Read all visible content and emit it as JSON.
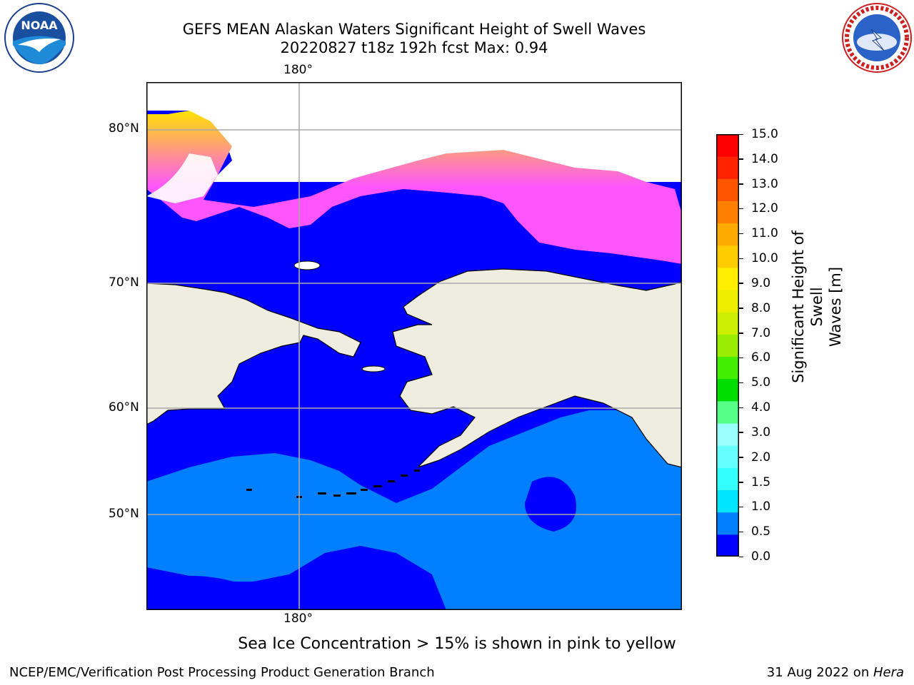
{
  "title": {
    "line1": "GEFS MEAN Alaskan Waters Significant Height of Swell Waves",
    "line2": "20220827 t18z 192h fcst   Max: 0.94"
  },
  "logos": {
    "left": {
      "name": "noaa-logo",
      "text": "NOAA"
    },
    "right": {
      "name": "nws-logo",
      "text": "NATIONAL WEATHER SERVICE"
    }
  },
  "map": {
    "lon_label_top": "180°",
    "lon_label_bottom": "180°",
    "lat_labels": [
      "80°N",
      "70°N",
      "60°N",
      "50°N"
    ],
    "colors": {
      "deep_blue": "#0000ff",
      "light_blue": "#0080ff",
      "land": "#efede0",
      "ice_pink": "#ff55ff",
      "ice_yellow": "#ffe200"
    }
  },
  "colorbar": {
    "title_line1": "Significant Height of Swell",
    "title_line2": "Waves [m]",
    "ticks": [
      "0.0",
      "0.5",
      "1.0",
      "1.5",
      "2.0",
      "3.0",
      "4.0",
      "5.0",
      "6.0",
      "7.0",
      "8.0",
      "9.0",
      "10.0",
      "11.0",
      "12.0",
      "13.0",
      "14.0",
      "15.0"
    ],
    "colors": [
      "#0000ff",
      "#0080ff",
      "#00e5ff",
      "#33ffff",
      "#66ffff",
      "#99ffff",
      "#55ff88",
      "#00dd00",
      "#44ee00",
      "#99ee00",
      "#ccee00",
      "#eeee00",
      "#ffee00",
      "#ffcc00",
      "#ffaa00",
      "#ff8000",
      "#ff5500",
      "#ff2200",
      "#ff0000"
    ]
  },
  "caption": "Sea Ice Concentration > 15% is shown in pink to yellow",
  "footer": {
    "left": "NCEP/EMC/Verification Post Processing Product Generation Branch",
    "right_date": "31 Aug 2022 on ",
    "right_host": "Hera"
  }
}
